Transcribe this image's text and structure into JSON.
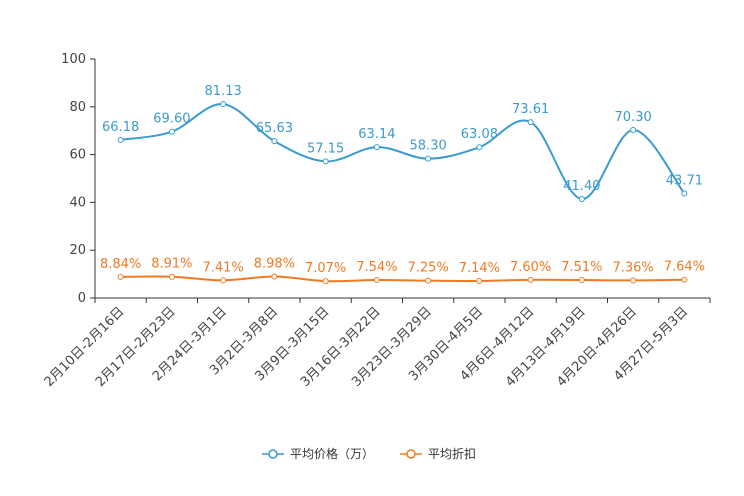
{
  "chart_data": {
    "type": "line",
    "categories": [
      "2月10日-2月16日",
      "2月17日-2月23日",
      "2月24日-3月1日",
      "3月2日-3月8日",
      "3月9日-3月15日",
      "3月16日-3月22日",
      "3月23日-3月29日",
      "3月30日-4月5日",
      "4月6日-4月12日",
      "4月13日-4月19日",
      "4月20日-4月26日",
      "4月27日-5月3日"
    ],
    "ylim": [
      0,
      100
    ],
    "yticks": [
      0,
      20,
      40,
      60,
      80,
      100
    ],
    "grid": false,
    "legend_position": "bottom-center",
    "series": [
      {
        "name": "平均价格（万）",
        "color": "#3a9bd0",
        "values": [
          66.18,
          69.6,
          81.13,
          65.63,
          57.15,
          63.14,
          58.3,
          63.08,
          73.61,
          41.4,
          70.3,
          43.71
        ],
        "labels": [
          "66.18",
          "69.60",
          "81.13",
          "65.63",
          "57.15",
          "63.14",
          "58.30",
          "63.08",
          "73.61",
          "41.40",
          "70.30",
          "43.71"
        ]
      },
      {
        "name": "平均折扣",
        "color": "#f07a22",
        "values": [
          8.84,
          8.91,
          7.41,
          8.98,
          7.07,
          7.54,
          7.25,
          7.14,
          7.6,
          7.51,
          7.36,
          7.64
        ],
        "labels": [
          "8.84%",
          "8.91%",
          "7.41%",
          "8.98%",
          "7.07%",
          "7.54%",
          "7.25%",
          "7.14%",
          "7.60%",
          "7.51%",
          "7.36%",
          "7.64%"
        ]
      }
    ]
  }
}
